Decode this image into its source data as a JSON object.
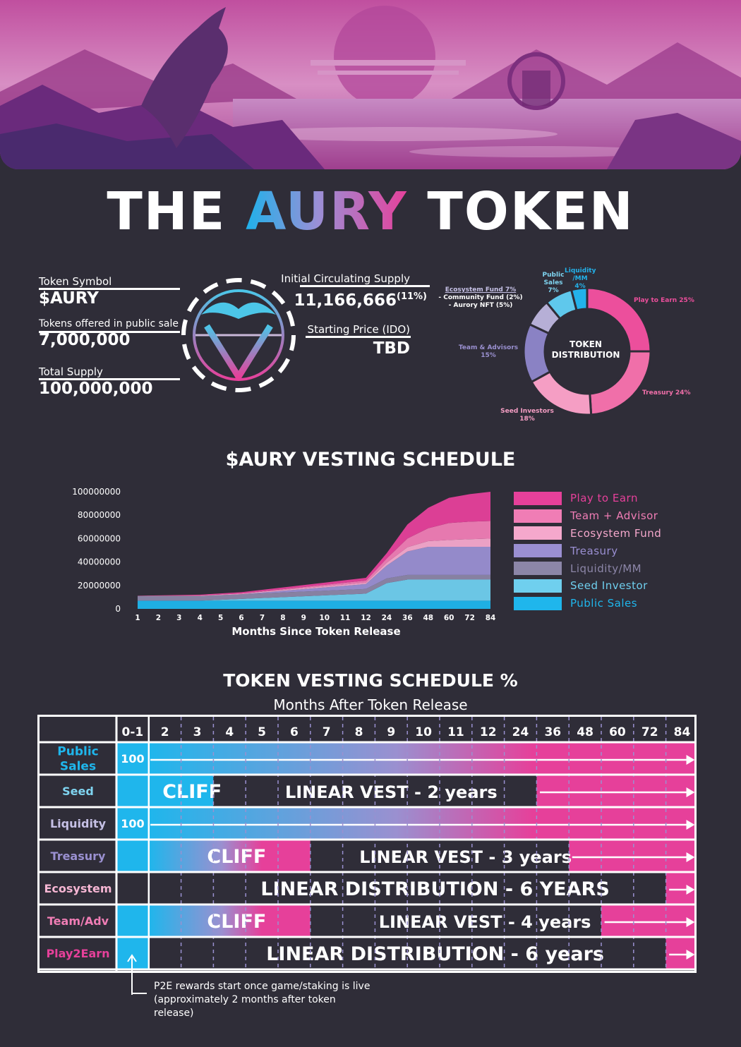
{
  "title": {
    "pre": "THE ",
    "highlight": "AURY",
    "post": " TOKEN"
  },
  "token_info": {
    "symbol_label": "Token Symbol",
    "symbol_value": "$AURY",
    "offered_label": "Tokens offered in public sale",
    "offered_value": "7,000,000",
    "supply_label": "Total Supply",
    "supply_value": "100,000,000",
    "circ_label": "Initial Circulating Supply",
    "circ_value": "11,166,666",
    "circ_pct": "(11%)",
    "price_label": "Starting Price (IDO)",
    "price_value": "TBD"
  },
  "colors": {
    "bg": "#2f2d38",
    "cyan": "#1fb6ec",
    "pink": "#e6409a",
    "lavender": "#9a90d0"
  },
  "chart_data": [
    {
      "type": "pie",
      "title": "TOKEN DISTRIBUTION",
      "slices": [
        {
          "label": "Play to Earn 25%",
          "value": 25,
          "color": "#ec4f9c"
        },
        {
          "label": "Treasury 24%",
          "value": 24,
          "color": "#f06fa9"
        },
        {
          "label": "Seed Investors 18%",
          "value": 18,
          "color": "#f59ec4"
        },
        {
          "label": "Team & Advisors 15%",
          "value": 15,
          "color": "#8a82c4"
        },
        {
          "label": "Ecosystem Fund 7% - Community Fund (2%) - Aurory NFT (5%)",
          "value": 7,
          "color": "#b6afd6"
        },
        {
          "label": "Public Sales 7%",
          "value": 7,
          "color": "#5fc8ec"
        },
        {
          "label": "Liquidity /MM 4%",
          "value": 4,
          "color": "#23b2ea"
        }
      ],
      "labels_display": {
        "p2e": "Play to Earn 25%",
        "treasury": "Treasury 24%",
        "seed_1": "Seed Investors",
        "seed_2": "18%",
        "team_1": "Team & Advisors",
        "team_2": "15%",
        "eco_1": "Ecosystem Fund 7%",
        "eco_2": "- Community Fund (2%)",
        "eco_3": "- Aurory NFT (5%)",
        "public_1": "Public",
        "public_2": "Sales",
        "public_3": "7%",
        "liq_1": "Liquidity",
        "liq_2": "/MM",
        "liq_3": "4%",
        "center_1": "TOKEN",
        "center_2": "DISTRIBUTION"
      }
    },
    {
      "type": "area",
      "title": "$AURY VESTING SCHEDULE",
      "xlabel": "Months Since Token Release",
      "ylabel": "",
      "categories": [
        "1",
        "2",
        "3",
        "4",
        "5",
        "6",
        "7",
        "8",
        "9",
        "10",
        "11",
        "12",
        "24",
        "36",
        "48",
        "60",
        "72",
        "84"
      ],
      "ylim": [
        0,
        100000000
      ],
      "yticks": [
        0,
        20000000,
        40000000,
        60000000,
        80000000,
        100000000
      ],
      "stacked": true,
      "series": [
        {
          "name": "Public Sales",
          "color": "#1fb6ec",
          "values": [
            7000000,
            7000000,
            7000000,
            7000000,
            7000000,
            7000000,
            7000000,
            7000000,
            7000000,
            7000000,
            7000000,
            7000000,
            7000000,
            7000000,
            7000000,
            7000000,
            7000000,
            7000000
          ]
        },
        {
          "name": "Seed Investor",
          "color": "#6fcfee",
          "values": [
            0,
            0,
            0,
            0,
            750000,
            1500000,
            2250000,
            3000000,
            3750000,
            4500000,
            5250000,
            6000000,
            15000000,
            18000000,
            18000000,
            18000000,
            18000000,
            18000000
          ]
        },
        {
          "name": "Liquidity/MM",
          "color": "#8c86a8",
          "values": [
            4000000,
            4000000,
            4000000,
            4000000,
            4000000,
            4000000,
            4000000,
            4000000,
            4000000,
            4000000,
            4000000,
            4000000,
            4000000,
            4000000,
            4000000,
            4000000,
            4000000,
            4000000
          ]
        },
        {
          "name": "Treasury",
          "color": "#9a8fd2",
          "values": [
            0,
            0,
            0,
            0,
            0,
            0,
            700000,
            1400000,
            2100000,
            2800000,
            3500000,
            4200000,
            11000000,
            20000000,
            24000000,
            24000000,
            24000000,
            24000000
          ]
        },
        {
          "name": "Ecosystem Fund",
          "color": "#f5a8cc",
          "values": [
            100000,
            200000,
            300000,
            400000,
            500000,
            600000,
            700000,
            800000,
            900000,
            1000000,
            1100000,
            1200000,
            2400000,
            3600000,
            4800000,
            5800000,
            6500000,
            7000000
          ]
        },
        {
          "name": "Team + Advisor",
          "color": "#f07db5",
          "values": [
            0,
            0,
            0,
            0,
            0,
            0,
            300000,
            600000,
            900000,
            1200000,
            1500000,
            1800000,
            3600000,
            7500000,
            11000000,
            14500000,
            15000000,
            15000000
          ]
        },
        {
          "name": "Play to Earn",
          "color": "#e6409a",
          "values": [
            100000,
            300000,
            500000,
            700000,
            900000,
            1100000,
            1300000,
            1500000,
            1700000,
            1900000,
            2100000,
            2300000,
            4500000,
            12000000,
            17500000,
            21500000,
            23500000,
            25000000
          ]
        }
      ],
      "ytick_labels": [
        "0",
        "20000000",
        "40000000",
        "60000000",
        "80000000",
        "100000000"
      ]
    }
  ],
  "vesting_title": "TOKEN VESTING SCHEDULE %",
  "vesting_subtitle": "Months After Token Release",
  "vesting_table": {
    "columns": [
      "0-1",
      "2",
      "3",
      "4",
      "5",
      "6",
      "7",
      "8",
      "9",
      "10",
      "11",
      "12",
      "24",
      "36",
      "48",
      "60",
      "72",
      "84"
    ],
    "rows": [
      {
        "label_lines": [
          "Public",
          "Sales"
        ],
        "label_color": "#1fb6ec",
        "first_cell": "100",
        "segments": []
      },
      {
        "label_lines": [
          "Seed"
        ],
        "label_color": "#7fd4f0",
        "first_cell": "",
        "segments": [
          "CLIFF",
          "LINEAR VEST - 2 years"
        ]
      },
      {
        "label_lines": [
          "Liquidity"
        ],
        "label_color": "#c6c1e6",
        "first_cell": "100",
        "segments": []
      },
      {
        "label_lines": [
          "Treasury"
        ],
        "label_color": "#9a90d0",
        "first_cell": "",
        "segments": [
          "CLIFF",
          "LINEAR VEST - 3 years"
        ]
      },
      {
        "label_lines": [
          "Ecosystem"
        ],
        "label_color": "#f6b6d3",
        "first_cell": "",
        "segments": [
          "LINEAR DISTRIBUTION - 6 YEARS"
        ]
      },
      {
        "label_lines": [
          "Team/Adv"
        ],
        "label_color": "#f07db5",
        "first_cell": "",
        "segments": [
          "CLIFF",
          "LINEAR VEST - 4 years"
        ]
      },
      {
        "label_lines": [
          "Play2Earn"
        ],
        "label_color": "#e6409a",
        "first_cell": "",
        "segments": [
          "LINEAR DISTRIBUTION - 6 years"
        ]
      }
    ]
  },
  "note_lines": [
    "P2E rewards start once game/staking is live",
    "(approximately 2 months after token",
    "release)"
  ]
}
